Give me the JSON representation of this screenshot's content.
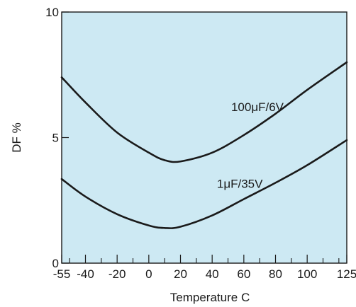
{
  "chart_data": {
    "type": "line",
    "title": "",
    "xlabel": "Temperature C",
    "ylabel": "DF %",
    "xlim": [
      -55,
      125
    ],
    "ylim": [
      0,
      10
    ],
    "x_ticks": [
      -55,
      -40,
      -20,
      0,
      20,
      40,
      60,
      80,
      100,
      125
    ],
    "x_minor_ticks": [
      -50,
      -30,
      -10,
      10,
      30,
      50,
      70,
      90,
      110,
      120
    ],
    "y_ticks": [
      0,
      5,
      10
    ],
    "grid": false,
    "legend": "none",
    "colors": {
      "plot_bg": "#cde9f3",
      "line": "#1a1a1a",
      "frame": "#1a1a1a"
    },
    "series": [
      {
        "name": "100μF/6V",
        "x": [
          -55,
          -40,
          -20,
          0,
          10,
          20,
          40,
          60,
          80,
          100,
          125
        ],
        "y": [
          7.4,
          6.4,
          5.2,
          4.4,
          4.1,
          4.05,
          4.4,
          5.1,
          5.95,
          6.9,
          8.0
        ]
      },
      {
        "name": "1μF/35V",
        "x": [
          -55,
          -40,
          -20,
          0,
          10,
          20,
          40,
          60,
          80,
          100,
          125
        ],
        "y": [
          3.35,
          2.65,
          1.95,
          1.5,
          1.4,
          1.45,
          1.9,
          2.55,
          3.2,
          3.9,
          4.9
        ]
      }
    ]
  }
}
